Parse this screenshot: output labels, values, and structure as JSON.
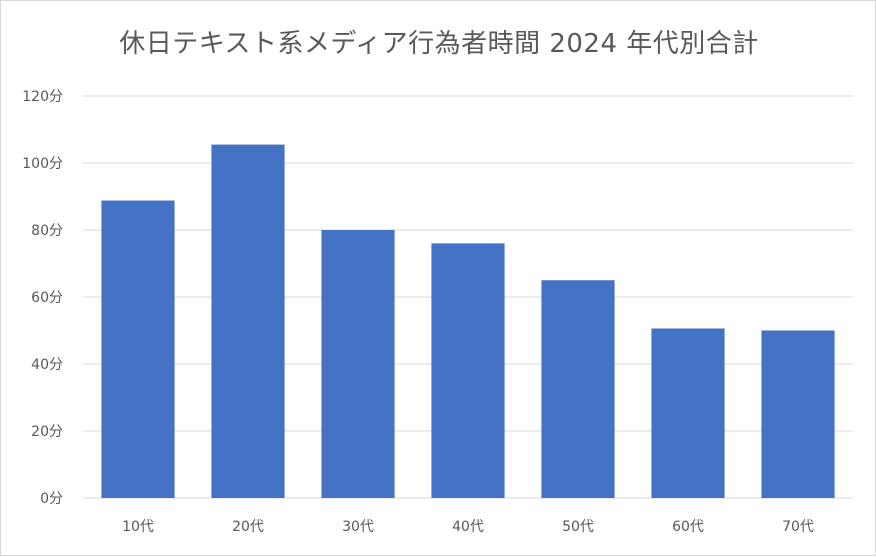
{
  "chart_data": {
    "type": "bar",
    "title": "休日テキスト系メディア行為者時間 2024 年代別合計",
    "categories": [
      "10代",
      "20代",
      "30代",
      "40代",
      "50代",
      "60代",
      "70代"
    ],
    "values": [
      88.8,
      105.5,
      80.0,
      76.0,
      65.0,
      50.6,
      50.0
    ],
    "y_ticks": [
      "0分",
      "20分",
      "40分",
      "60分",
      "80分",
      "100分",
      "120分"
    ],
    "y_tick_values": [
      0,
      20,
      40,
      60,
      80,
      100,
      120
    ],
    "ylim": [
      0,
      120
    ],
    "grid": true,
    "legend": "none",
    "bar_color": "#4472c4",
    "grid_color": "#d9d9d9",
    "text_color": "#595959"
  }
}
